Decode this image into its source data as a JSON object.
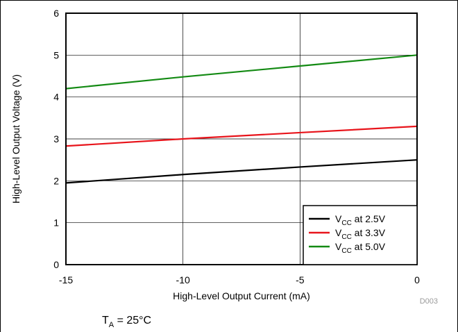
{
  "chart_data": {
    "type": "line",
    "xlabel": "High-Level Output Current (mA)",
    "ylabel": "High-Level Output Voltage (V)",
    "xlim": [
      -15,
      0
    ],
    "ylim": [
      0,
      6
    ],
    "xticks": [
      -15,
      -10,
      -5,
      0
    ],
    "yticks": [
      0,
      1,
      2,
      3,
      4,
      5,
      6
    ],
    "grid": true,
    "legend_position": "bottom-right",
    "series": [
      {
        "name_main": "V",
        "name_sub": "CC",
        "name_rest": " at 2.5V",
        "color": "#000000",
        "x": [
          -15,
          -10,
          -5,
          0
        ],
        "y": [
          1.95,
          2.15,
          2.33,
          2.5
        ]
      },
      {
        "name_main": "V",
        "name_sub": "CC",
        "name_rest": " at 3.3V",
        "color": "#e8141b",
        "x": [
          -15,
          -10,
          -5,
          0
        ],
        "y": [
          2.83,
          3.0,
          3.15,
          3.3
        ]
      },
      {
        "name_main": "V",
        "name_sub": "CC",
        "name_rest": " at 5.0V",
        "color": "#138a13",
        "x": [
          -15,
          -10,
          -5,
          0
        ],
        "y": [
          4.2,
          4.48,
          4.74,
          5.0
        ]
      }
    ]
  },
  "code_label": "D003",
  "condition": {
    "main": "T",
    "sub": "A",
    "rest": " = 25°C"
  }
}
